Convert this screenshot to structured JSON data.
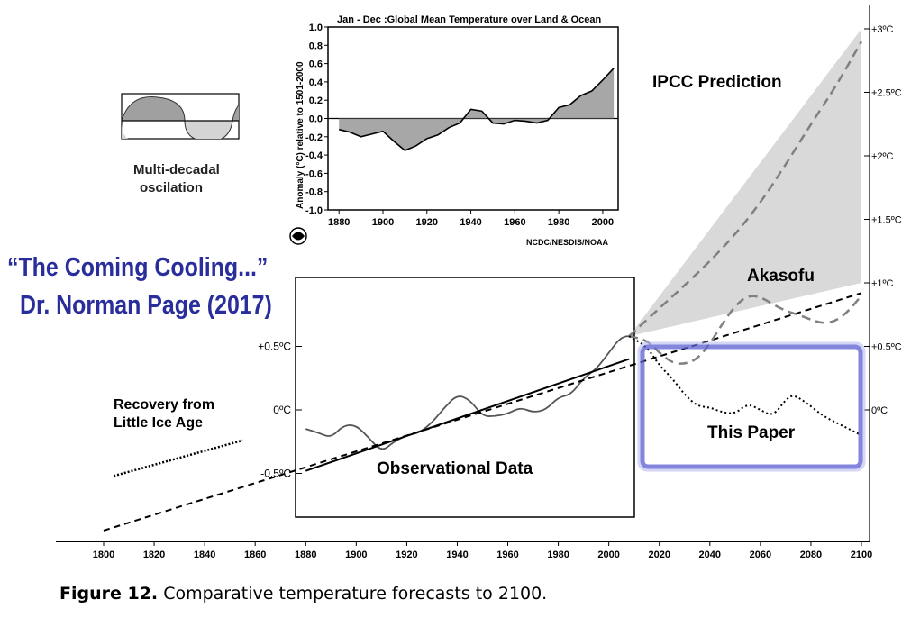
{
  "caption": {
    "label": "Figure 12.",
    "text": "Comparative temperature forecasts to 2100."
  },
  "headline": {
    "line1": "“The Coming Cooling...”",
    "line2": "Dr. Norman Page (2017)",
    "color": "#2a2e9c"
  },
  "oscillation_label": [
    "Multi-decadal",
    "oscilation"
  ],
  "colors": {
    "highlight_box": "#4b4fc4",
    "ipcc_band": "#d9d9d9",
    "dashed_lines": "#808080",
    "text": "#000000"
  },
  "chart_data": [
    {
      "type": "line",
      "title": "",
      "x_ticks": [
        1800,
        1820,
        1840,
        1860,
        1880,
        1900,
        1920,
        1940,
        1960,
        1980,
        2000,
        2020,
        2040,
        2060,
        2080,
        2100
      ],
      "xlim": [
        1800,
        2100
      ],
      "y_right_ticks": [
        "+3ºC",
        "+2.5ºC",
        "+2ºC",
        "+1.5ºC",
        "+1ºC",
        "+0.5ºC",
        "0ºC"
      ],
      "y_right_values": [
        3,
        2.5,
        2,
        1.5,
        1,
        0.5,
        0
      ],
      "y_left_ticks": [
        "+0.5ºC",
        "0ºC",
        "-0.5ºC"
      ],
      "y_left_values": [
        0.5,
        0,
        -0.5
      ],
      "ylim": [
        -1,
        3
      ],
      "annotations": {
        "ipcc": "IPCC Prediction",
        "akasofu": "Akasofu",
        "this_paper": "This Paper",
        "observational": "Observational Data",
        "recovery": [
          "Recovery from",
          "Little Ice Age"
        ]
      },
      "series": [
        {
          "key": "observational",
          "style": "solid",
          "x": [
            1880,
            1885,
            1890,
            1895,
            1900,
            1905,
            1910,
            1915,
            1920,
            1925,
            1930,
            1935,
            1940,
            1945,
            1950,
            1955,
            1960,
            1965,
            1970,
            1975,
            1980,
            1985,
            1990,
            1995,
            2000,
            2005,
            2010
          ],
          "y": [
            -0.15,
            -0.18,
            -0.22,
            -0.12,
            -0.12,
            -0.22,
            -0.33,
            -0.25,
            -0.2,
            -0.18,
            -0.1,
            0.02,
            0.12,
            0.08,
            -0.05,
            -0.05,
            -0.03,
            0.02,
            -0.02,
            0.0,
            0.1,
            0.12,
            0.25,
            0.32,
            0.45,
            0.58,
            0.58
          ]
        },
        {
          "key": "trend",
          "style": "solid",
          "x": [
            1880,
            2008
          ],
          "y": [
            -0.48,
            0.4
          ]
        },
        {
          "key": "recovery",
          "style": "dashed",
          "x": [
            1800,
            2100
          ],
          "y": [
            -0.95,
            0.92
          ]
        },
        {
          "key": "recovery_sample",
          "style": "dotted",
          "x": [
            1804,
            1855
          ],
          "y": [
            -0.52,
            -0.24
          ]
        },
        {
          "key": "ipcc_central",
          "style": "dashed",
          "x": [
            2008,
            2020,
            2030,
            2040,
            2050,
            2060,
            2070,
            2080,
            2090,
            2100
          ],
          "y": [
            0.58,
            0.8,
            0.98,
            1.17,
            1.38,
            1.63,
            1.93,
            2.25,
            2.55,
            2.9
          ]
        },
        {
          "key": "akasofu",
          "style": "dashed",
          "x": [
            2008,
            2015,
            2020,
            2025,
            2030,
            2035,
            2040,
            2045,
            2050,
            2055,
            2060,
            2065,
            2070,
            2075,
            2080,
            2085,
            2090,
            2095,
            2100
          ],
          "y": [
            0.58,
            0.55,
            0.45,
            0.37,
            0.36,
            0.4,
            0.52,
            0.68,
            0.82,
            0.9,
            0.89,
            0.83,
            0.78,
            0.75,
            0.71,
            0.68,
            0.7,
            0.78,
            0.9
          ]
        },
        {
          "key": "this_paper",
          "style": "dotted",
          "x": [
            2008,
            2015,
            2020,
            2025,
            2030,
            2035,
            2040,
            2045,
            2050,
            2055,
            2060,
            2065,
            2070,
            2073,
            2078,
            2085,
            2090,
            2095,
            2100
          ],
          "y": [
            0.58,
            0.5,
            0.35,
            0.25,
            0.12,
            0.03,
            0.02,
            -0.02,
            -0.03,
            0.05,
            0.0,
            -0.05,
            0.08,
            0.12,
            0.06,
            -0.05,
            -0.1,
            -0.15,
            -0.2
          ]
        }
      ],
      "ipcc_band": {
        "x": [
          2008,
          2100
        ],
        "upper": [
          0.58,
          3.0
        ],
        "lower": [
          0.58,
          1.0
        ]
      }
    },
    {
      "type": "area",
      "title": "Jan - Dec :Global Mean Temperature over Land & Ocean",
      "ylabel": "Anomaly (°C) relative to 1501-2000",
      "source": "NCDC/NESDIS/NOAA",
      "xlim": [
        1875,
        2007
      ],
      "ylim": [
        -1.0,
        1.0
      ],
      "x_ticks": [
        1880,
        1900,
        1920,
        1940,
        1960,
        1980,
        2000
      ],
      "y_ticks": [
        "1.0",
        "0.8",
        "0.6",
        "0.4",
        "0.2",
        "0.0",
        "-0.2",
        "-0.4",
        "-0.6",
        "-0.8",
        "-1.0"
      ],
      "y_tick_values": [
        1.0,
        0.8,
        0.6,
        0.4,
        0.2,
        0.0,
        -0.2,
        -0.4,
        -0.6,
        -0.8,
        -1.0
      ],
      "smooth": {
        "x": [
          1880,
          1885,
          1890,
          1895,
          1900,
          1905,
          1910,
          1915,
          1920,
          1925,
          1930,
          1935,
          1940,
          1945,
          1950,
          1955,
          1960,
          1965,
          1970,
          1975,
          1980,
          1985,
          1990,
          1995,
          2000,
          2005
        ],
        "y": [
          -0.12,
          -0.15,
          -0.2,
          -0.17,
          -0.14,
          -0.25,
          -0.35,
          -0.3,
          -0.22,
          -0.18,
          -0.1,
          -0.05,
          0.1,
          0.08,
          -0.05,
          -0.06,
          -0.02,
          -0.03,
          -0.05,
          -0.02,
          0.12,
          0.15,
          0.25,
          0.3,
          0.42,
          0.55
        ]
      }
    }
  ]
}
